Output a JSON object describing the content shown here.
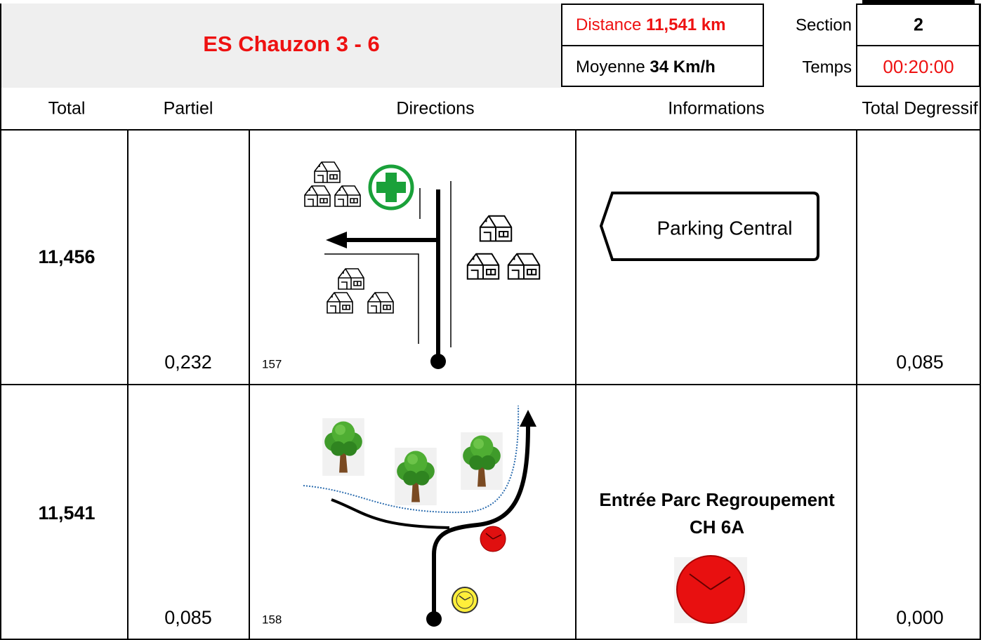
{
  "header": {
    "title": "ES Chauzon 3 - 6",
    "distance_label": "Distance",
    "distance": "11,541 km",
    "average_label": "Moyenne",
    "average": "34 Km/h",
    "section_label": "Section",
    "section": "2",
    "time_label": "Temps",
    "time": "00:20:00"
  },
  "table": {
    "columns": [
      "Total",
      "Partiel",
      "Directions",
      "Informations",
      "Total Degressif"
    ],
    "rows": [
      {
        "total": "11,456",
        "partial": "0,232",
        "direction_number": "157",
        "information": [
          "Parking Central"
        ],
        "remaining": "0,085"
      },
      {
        "total": "11,541",
        "partial": "0,085",
        "direction_number": "158",
        "information": [
          "Entrée Parc Regroupement",
          "CH 6A"
        ],
        "remaining": "0,000"
      }
    ]
  }
}
